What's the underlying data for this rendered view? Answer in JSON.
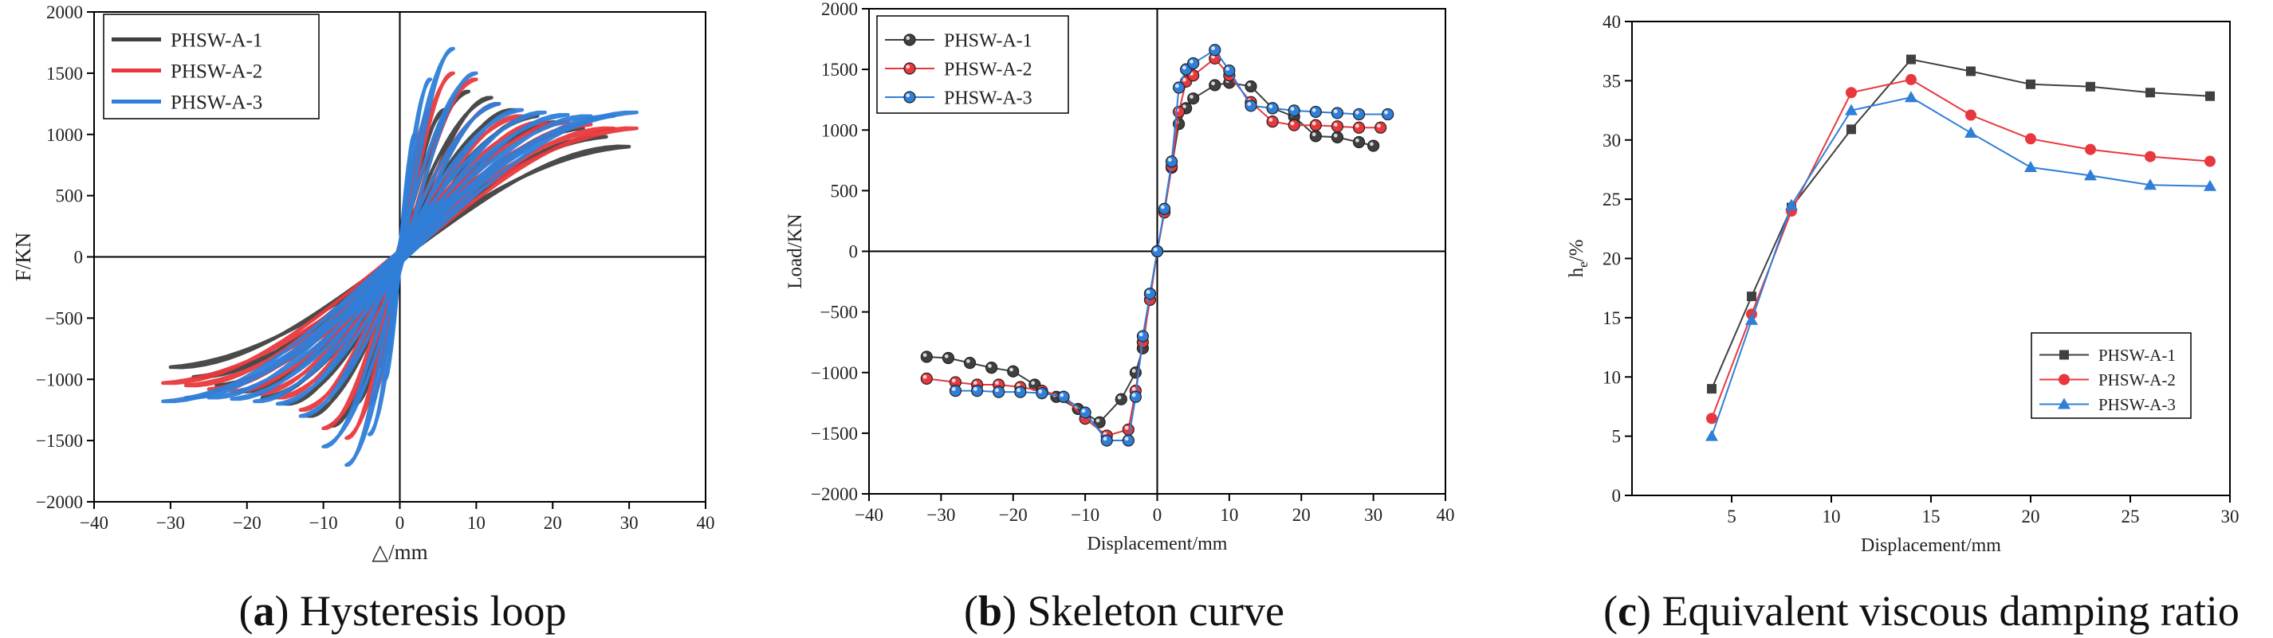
{
  "chart_data": [
    {
      "type": "line",
      "panel": "a",
      "caption_letter": "a",
      "caption_text": "Hysteresis loop",
      "xlabel": "△/mm",
      "ylabel": "F/KN",
      "xlim": [
        -40,
        40
      ],
      "ylim": [
        -2000,
        2000
      ],
      "xticks": [
        -40,
        -30,
        -20,
        -10,
        0,
        10,
        20,
        30,
        40
      ],
      "yticks": [
        -2000,
        -1500,
        -1000,
        -500,
        0,
        500,
        1000,
        1500,
        2000
      ],
      "legend": "top-left",
      "series": [
        {
          "name": "PHSW-A-1",
          "color": "#404040",
          "amplitudes": [
            3,
            6,
            9,
            12,
            15,
            18,
            21,
            24,
            27,
            30
          ],
          "peaks_pos": [
            900,
            1200,
            1350,
            1300,
            1200,
            1150,
            1100,
            1050,
            980,
            900
          ],
          "peaks_neg": [
            -900,
            -1200,
            -1380,
            -1300,
            -1200,
            -1150,
            -1100,
            -1050,
            -980,
            -900
          ]
        },
        {
          "name": "PHSW-A-2",
          "color": "#e8383d",
          "amplitudes": [
            2,
            4,
            7,
            10,
            13,
            16,
            19,
            22,
            25,
            28,
            31
          ],
          "peaks_pos": [
            800,
            1200,
            1500,
            1450,
            1250,
            1150,
            1100,
            1100,
            1080,
            1050,
            1050
          ],
          "peaks_neg": [
            -800,
            -1200,
            -1480,
            -1400,
            -1250,
            -1150,
            -1120,
            -1100,
            -1080,
            -1050,
            -1030
          ]
        },
        {
          "name": "PHSW-A-3",
          "color": "#2f7ed8",
          "amplitudes": [
            2,
            4,
            7,
            10,
            13,
            16,
            19,
            22,
            25,
            28,
            31
          ],
          "peaks_pos": [
            1000,
            1450,
            1700,
            1500,
            1250,
            1200,
            1180,
            1160,
            1150,
            1150,
            1180
          ],
          "peaks_neg": [
            -1000,
            -1450,
            -1700,
            -1550,
            -1300,
            -1200,
            -1180,
            -1160,
            -1150,
            -1150,
            -1180
          ]
        }
      ]
    },
    {
      "type": "line",
      "panel": "b",
      "caption_letter": "b",
      "caption_text": "Skeleton curve",
      "xlabel": "Displacement/mm",
      "ylabel": "Load/KN",
      "xlim": [
        -40,
        40
      ],
      "ylim": [
        -2000,
        2000
      ],
      "xticks": [
        -40,
        -30,
        -20,
        -10,
        0,
        10,
        20,
        30,
        40
      ],
      "yticks": [
        -2000,
        -1500,
        -1000,
        -500,
        0,
        500,
        1000,
        1500,
        2000
      ],
      "legend": "top-left",
      "series": [
        {
          "name": "PHSW-A-1",
          "color": "#404040",
          "points": [
            [
              -32,
              -870
            ],
            [
              -29,
              -880
            ],
            [
              -26,
              -920
            ],
            [
              -23,
              -960
            ],
            [
              -20,
              -990
            ],
            [
              -17,
              -1100
            ],
            [
              -14,
              -1200
            ],
            [
              -11,
              -1300
            ],
            [
              -8,
              -1410
            ],
            [
              -5,
              -1220
            ],
            [
              -3,
              -1000
            ],
            [
              -2,
              -800
            ],
            [
              -1,
              -350
            ],
            [
              0,
              0
            ],
            [
              1,
              330
            ],
            [
              2,
              690
            ],
            [
              3,
              1050
            ],
            [
              4,
              1180
            ],
            [
              5,
              1260
            ],
            [
              8,
              1370
            ],
            [
              10,
              1390
            ],
            [
              13,
              1360
            ],
            [
              16,
              1180
            ],
            [
              19,
              1110
            ],
            [
              22,
              950
            ],
            [
              25,
              940
            ],
            [
              28,
              900
            ],
            [
              30,
              870
            ]
          ]
        },
        {
          "name": "PHSW-A-2",
          "color": "#e8383d",
          "points": [
            [
              -32,
              -1050
            ],
            [
              -28,
              -1080
            ],
            [
              -25,
              -1100
            ],
            [
              -22,
              -1100
            ],
            [
              -19,
              -1120
            ],
            [
              -16,
              -1150
            ],
            [
              -13,
              -1200
            ],
            [
              -10,
              -1380
            ],
            [
              -7,
              -1520
            ],
            [
              -4,
              -1470
            ],
            [
              -3,
              -1150
            ],
            [
              -2,
              -750
            ],
            [
              -1,
              -400
            ],
            [
              0,
              0
            ],
            [
              1,
              320
            ],
            [
              2,
              700
            ],
            [
              3,
              1150
            ],
            [
              4,
              1400
            ],
            [
              5,
              1450
            ],
            [
              8,
              1590
            ],
            [
              10,
              1450
            ],
            [
              13,
              1230
            ],
            [
              16,
              1070
            ],
            [
              19,
              1040
            ],
            [
              22,
              1040
            ],
            [
              25,
              1030
            ],
            [
              28,
              1020
            ],
            [
              31,
              1020
            ]
          ]
        },
        {
          "name": "PHSW-A-3",
          "color": "#2f7ed8",
          "points": [
            [
              -28,
              -1150
            ],
            [
              -25,
              -1150
            ],
            [
              -22,
              -1160
            ],
            [
              -19,
              -1160
            ],
            [
              -16,
              -1170
            ],
            [
              -13,
              -1200
            ],
            [
              -10,
              -1330
            ],
            [
              -7,
              -1560
            ],
            [
              -4,
              -1560
            ],
            [
              -3,
              -1200
            ],
            [
              -2,
              -700
            ],
            [
              -1,
              -350
            ],
            [
              0,
              0
            ],
            [
              1,
              350
            ],
            [
              2,
              740
            ],
            [
              3,
              1350
            ],
            [
              4,
              1500
            ],
            [
              5,
              1550
            ],
            [
              8,
              1660
            ],
            [
              10,
              1490
            ],
            [
              13,
              1200
            ],
            [
              16,
              1180
            ],
            [
              19,
              1160
            ],
            [
              22,
              1150
            ],
            [
              25,
              1140
            ],
            [
              28,
              1130
            ],
            [
              32,
              1130
            ]
          ]
        }
      ]
    },
    {
      "type": "line",
      "panel": "c",
      "caption_letter": "c",
      "caption_text": "Equivalent viscous damping ratio",
      "xlabel": "Displacement/mm",
      "ylabel_main": "h",
      "ylabel_sub": "e",
      "ylabel_suffix": "/%",
      "xlim": [
        0,
        30
      ],
      "ylim": [
        0,
        40
      ],
      "xticks": [
        5,
        10,
        15,
        20,
        25,
        30
      ],
      "yticks": [
        0,
        5,
        10,
        15,
        20,
        25,
        30,
        35,
        40
      ],
      "legend": "center-right",
      "series": [
        {
          "name": "PHSW-A-1",
          "color": "#404040",
          "marker": "square",
          "x": [
            4,
            6,
            8,
            11,
            14,
            17,
            20,
            23,
            26,
            29
          ],
          "y": [
            9.0,
            16.8,
            24.3,
            30.9,
            36.8,
            35.8,
            34.7,
            34.5,
            34.0,
            33.7
          ]
        },
        {
          "name": "PHSW-A-2",
          "color": "#e8383d",
          "marker": "circle",
          "x": [
            4,
            6,
            8,
            11,
            14,
            17,
            20,
            23,
            26,
            29
          ],
          "y": [
            6.5,
            15.3,
            24.0,
            34.0,
            35.1,
            32.1,
            30.1,
            29.2,
            28.6,
            28.2
          ]
        },
        {
          "name": "PHSW-A-3",
          "color": "#2f7ed8",
          "marker": "triangle",
          "x": [
            4,
            6,
            8,
            11,
            14,
            17,
            20,
            23,
            26,
            29
          ],
          "y": [
            5.0,
            14.8,
            24.5,
            32.5,
            33.6,
            30.6,
            27.7,
            27.0,
            26.2,
            26.1
          ]
        }
      ]
    }
  ]
}
